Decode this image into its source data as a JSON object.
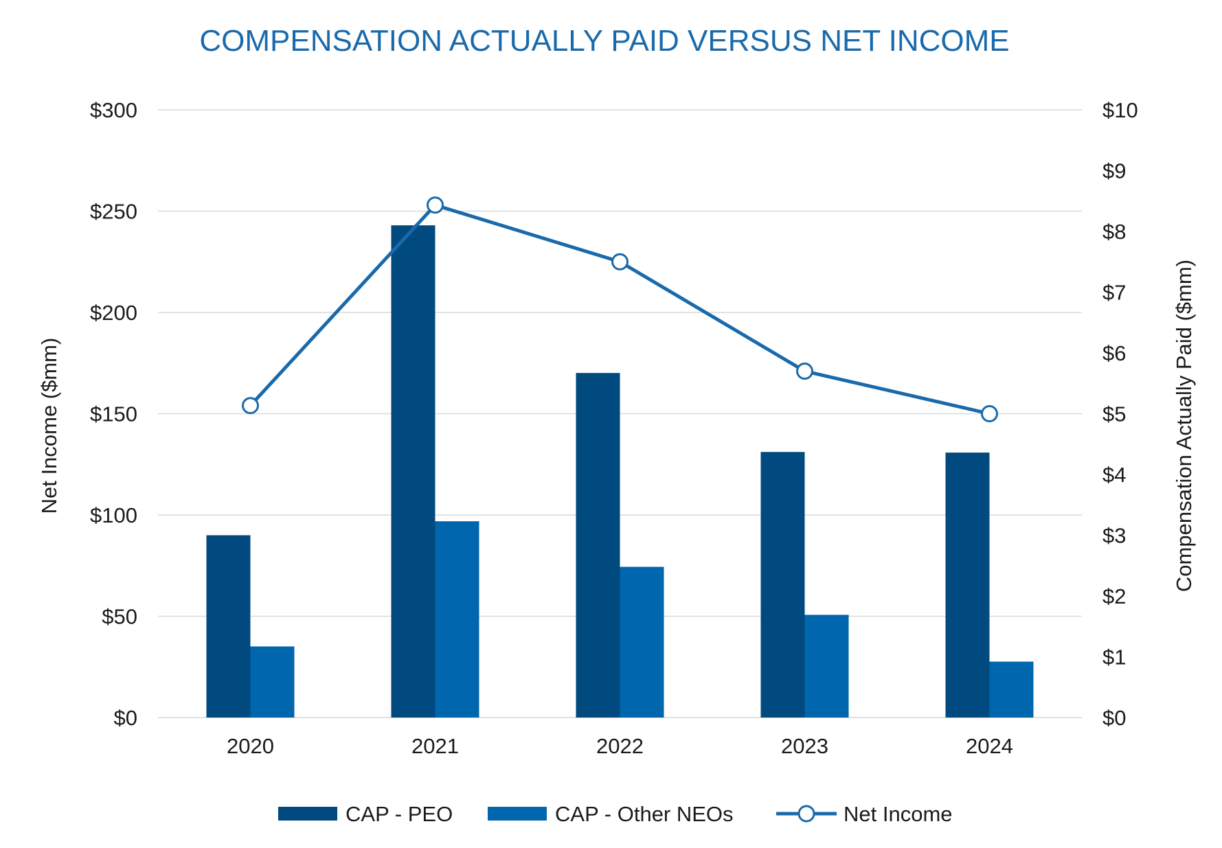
{
  "chart_data": {
    "type": "bar",
    "title": "COMPENSATION ACTUALLY PAID VERSUS NET INCOME",
    "categories": [
      "2020",
      "2021",
      "2022",
      "2023",
      "2024"
    ],
    "series": [
      {
        "name": "CAP - PEO",
        "axis": "right",
        "kind": "bar",
        "color": "#004a80",
        "values": [
          3.0,
          8.1,
          5.67,
          4.37,
          4.36
        ]
      },
      {
        "name": "CAP - Other NEOs",
        "axis": "right",
        "kind": "bar",
        "color": "#0066ad",
        "values": [
          1.17,
          3.23,
          2.48,
          1.69,
          0.92
        ]
      },
      {
        "name": "Net Income",
        "axis": "left",
        "kind": "line",
        "color": "#1a6aab",
        "values": [
          154,
          253,
          225,
          171,
          150
        ]
      }
    ],
    "y_left": {
      "label": "Net Income ($mm)",
      "lim": [
        0,
        300
      ],
      "ticks": [
        0,
        50,
        100,
        150,
        200,
        250,
        300
      ],
      "tick_labels": [
        "$0",
        "$50",
        "$100",
        "$150",
        "$200",
        "$250",
        "$300"
      ]
    },
    "y_right": {
      "label": "Compensation Actually Paid ($mm)",
      "lim": [
        0,
        10
      ],
      "ticks": [
        0,
        1,
        2,
        3,
        4,
        5,
        6,
        7,
        8,
        9,
        10
      ],
      "tick_labels": [
        "$0",
        "$1",
        "$2",
        "$3",
        "$4",
        "$5",
        "$6",
        "$7",
        "$8",
        "$9",
        "$10"
      ]
    },
    "grid": true,
    "legend_position": "bottom"
  }
}
